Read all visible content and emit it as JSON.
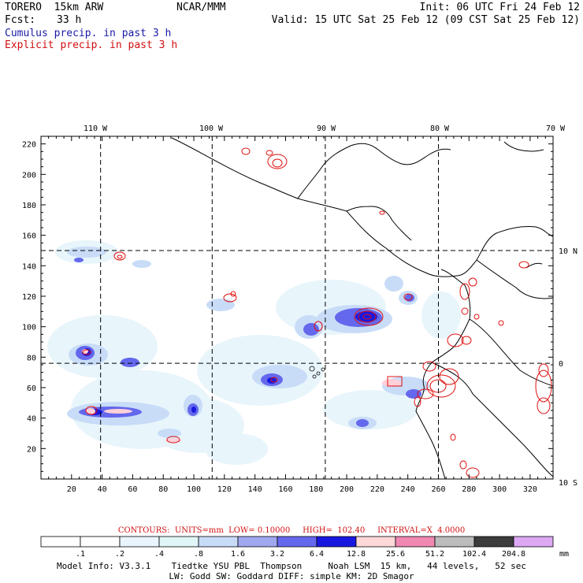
{
  "header": {
    "model": "TORERO  15km ARW",
    "org": "NCAR/MMM",
    "init": "Init: 06 UTC Fri 24 Feb 12",
    "fcst_label": "Fcst:",
    "fcst_value": "33 h",
    "valid": "Valid: 15 UTC Sat 25 Feb 12 (09 CST Sat 25 Feb 12)"
  },
  "legend_titles": {
    "cumulus": "Cumulus precip. in past 3 h",
    "explicit": "Explicit precip. in past 3 h"
  },
  "colors": {
    "cumulus": "#1a1aa8",
    "explicit": "#d01010",
    "frame": "#000000"
  },
  "chart_data": {
    "type": "heatmap",
    "title": "",
    "xlabel": "",
    "ylabel": "",
    "x_ticks": [
      "20",
      "40",
      "60",
      "80",
      "100",
      "120",
      "140",
      "160",
      "180",
      "200",
      "220",
      "240",
      "260",
      "280",
      "300",
      "320"
    ],
    "y_ticks": [
      "20",
      "40",
      "60",
      "80",
      "100",
      "120",
      "140",
      "160",
      "180",
      "200",
      "220"
    ],
    "xlim": [
      0,
      335
    ],
    "ylim": [
      0,
      225
    ],
    "lon_labels": [
      "110 W",
      "100 W",
      "90 W",
      "80 W",
      "70 W"
    ],
    "lat_labels": [
      "10 N",
      "0",
      "10 S"
    ],
    "grid_lines": {
      "meridians": [
        39,
        112,
        186,
        260
      ],
      "parallels": [
        76,
        150
      ]
    },
    "contours": {
      "label": "CONTOURS:  UNITS=mm  LOW= 0.10000     HIGH=  102.40     INTERVAL=X  4.0000",
      "low": 0.1,
      "high": 102.4,
      "interval_factor": 4.0,
      "units": "mm"
    },
    "colorbar": {
      "levels": [
        ".1",
        ".2",
        ".4",
        ".8",
        "1.6",
        "3.2",
        "6.4",
        "12.8",
        "25.6",
        "51.2",
        "102.4",
        "204.8"
      ],
      "units": "mm",
      "colors": [
        "#ffffff",
        "#ffffff",
        "#eaf4ff",
        "#e0f6f6",
        "#c8dcf8",
        "#a0a8f0",
        "#6468ec",
        "#1818e0",
        "#ffd8d8",
        "#f088b4",
        "#bcbcbc",
        "#3c3c3c",
        "#dca8f4"
      ]
    }
  },
  "footer": {
    "line1": "Model Info: V3.3.1    Tiedtke YSU PBL  Thompson     Noah LSM  15 km,   44 levels,   52 sec",
    "line2": "LW: Godd SW: Goddard DIFF: simple KM: 2D Smagor"
  }
}
